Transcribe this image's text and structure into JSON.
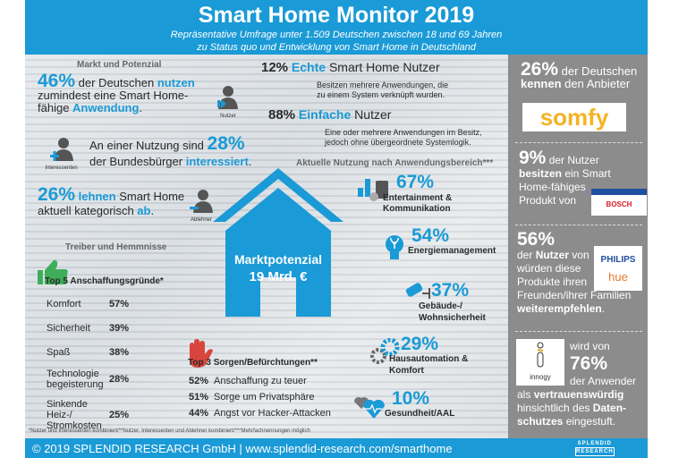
{
  "header": {
    "title": "Smart Home Monitor 2019",
    "subtitle_1": "Repräsentative Umfrage unter 1.509 Deutschen zwischen 18 und 69 Jahren",
    "subtitle_2": "zu Status quo und Entwicklung von Smart Home in Deutschland"
  },
  "market": {
    "heading": "Markt und Potenzial",
    "users": {
      "pct": "46%",
      "t1": "der Deutschen",
      "hl1": "nutzen",
      "t2": "zumindest eine Smart Home-",
      "t3": "fähige",
      "hl2": "Anwendung",
      "t4": ".",
      "icon_label": "Nutzer"
    },
    "interested": {
      "t1": "An einer Nutzung sind",
      "pct": "28%",
      "t2": "der Bundesbürger",
      "hl": "interessiert",
      "t3": ".",
      "icon_label": "Interessenten"
    },
    "reject": {
      "pct": "26%",
      "hl1": "lehnen",
      "t1": "Smart Home",
      "t2": "aktuell kategorisch",
      "hl2": "ab",
      "t3": ".",
      "icon_label": "Ablehner"
    }
  },
  "user_types": [
    {
      "pct": "12%",
      "hl": "Echte",
      "label": "Smart Home Nutzer",
      "desc1": "Besitzen mehrere Anwendungen, die",
      "desc2": "zu einem System verknüpft wurden."
    },
    {
      "pct": "88%",
      "hl": "Einfache",
      "label": "Nutzer",
      "desc1": "Eine oder mehrere Anwendungen im Besitz,",
      "desc2": "jedoch ohne übergeordnete Systemlogik."
    }
  ],
  "usage": {
    "heading": "Aktuelle Nutzung nach Anwendungsbereich***",
    "items": [
      {
        "pct": "67%",
        "l1": "Entertainment &",
        "l2": "Kommunikation",
        "icon": "devices-icon"
      },
      {
        "pct": "54%",
        "l1": "Energiemanagement",
        "l2": "",
        "icon": "lightbulb-icon"
      },
      {
        "pct": "37%",
        "l1": "Gebäude-/",
        "l2": "Wohnsicherheit",
        "icon": "camera-icon"
      },
      {
        "pct": "29%",
        "l1": "Hausautomation &",
        "l2": "Komfort",
        "icon": "gear-icon"
      },
      {
        "pct": "10%",
        "l1": "Gesundheit/AAL",
        "l2": "",
        "icon": "heart-icon"
      }
    ]
  },
  "house": {
    "l1": "Marktpotenzial",
    "l2": "19 Mrd. €"
  },
  "drivers": {
    "heading": "Treiber und Hemmnisse",
    "top": "Top 5",
    "title": "Anschaffungsgründe*",
    "rows": [
      {
        "l": "Komfort",
        "v": "57%"
      },
      {
        "l": "Sicherheit",
        "v": "39%"
      },
      {
        "l": "Spaß",
        "v": "38%"
      },
      {
        "l": "Technologie begeisterung",
        "v": "28%"
      },
      {
        "l": "Sinkende Heiz-/ Stromkosten",
        "v": "25%"
      }
    ]
  },
  "concerns": {
    "top": "Top 3",
    "title": "Sorgen/Befürchtungen**",
    "rows": [
      {
        "v": "52%",
        "l": "Anschaffung zu teuer"
      },
      {
        "v": "51%",
        "l": "Sorge um Privatsphäre"
      },
      {
        "v": "44%",
        "l": "Angst vor Hacker-Attacken"
      }
    ]
  },
  "footnote": "*Nutzer und Interessenten kombiniert/**Nutzer, Interessenten und Ablehner kombiniert/***Mehrfachnennungen möglich",
  "brands": {
    "somfy": {
      "pct": "26%",
      "t1": "der Deutschen",
      "b1": "kennen",
      "t2": "den Anbieter",
      "logo": "somfy"
    },
    "bosch": {
      "pct": "9%",
      "t1": "der Nutzer",
      "b1": "besitzen",
      "t2": "ein Smart",
      "t3": "Home-fähiges",
      "t4": "Produkt von",
      "logo": "BOSCH"
    },
    "philips": {
      "pct": "56%",
      "t1": "der",
      "b1": "Nutzer",
      "t2": "von",
      "t3": "würden diese",
      "t4": "Produkte ihren",
      "t5": "Freunden/ihrer Familien",
      "b2": "weiterempfehlen",
      "t6": ".",
      "logo1": "PHILIPS",
      "logo2": "hue"
    },
    "innogy": {
      "t1": "wird von",
      "pct": "76%",
      "t2": "der Anwender",
      "t3": "als",
      "b1": "vertrauenswürdig",
      "t4": "hinsichtlich des",
      "b2": "Daten-",
      "b3": "schutzes",
      "t5": "eingestuft.",
      "logo": "innogy"
    }
  },
  "footer": {
    "text": "© 2019 SPLENDID RESEARCH GmbH | www.splendid-research.com/smarthome",
    "logo1": "SPLENDID",
    "logo2": "RESEARCH"
  },
  "colors": {
    "blue": "#1a9ad6",
    "panel": "#8c8c8c",
    "green": "#3fae5a",
    "red": "#d9453d",
    "somfy": "#f5b324"
  }
}
